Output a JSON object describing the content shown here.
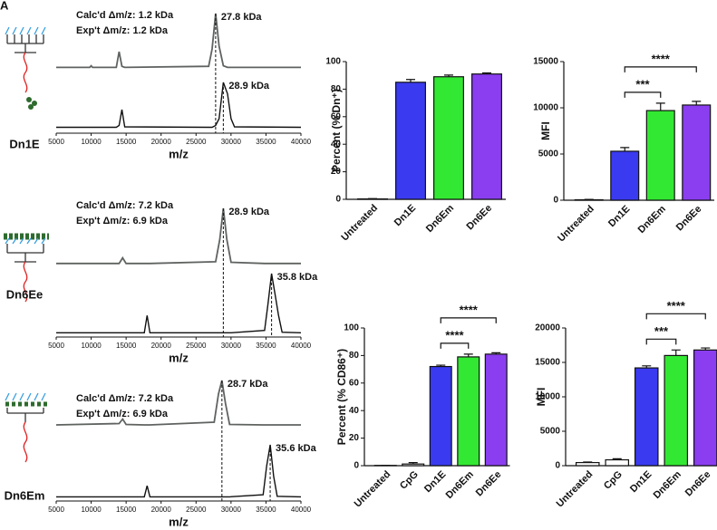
{
  "chart_data": [
    {
      "type": "line",
      "panel_label": "A",
      "sample": "Dn1E",
      "xlabel": "m/z",
      "annotations": [
        "Calc'd Δm/z: 1.2 kDa",
        "Exp't  Δm/z: 1.2 kDa"
      ],
      "xlim": [
        5000,
        40000
      ],
      "xticks": [
        5000,
        10000,
        15000,
        20000,
        25000,
        30000,
        35000,
        40000
      ],
      "x": [
        5000,
        9800,
        10000,
        10200,
        13600,
        14000,
        14400,
        14800,
        26800,
        27300,
        27800,
        28300,
        28900,
        29500,
        30000,
        30500,
        40000
      ],
      "series": [
        {
          "color": "#5f6360",
          "peak": {
            "x": 27800,
            "label": "27.8 kDa"
          },
          "values": [
            0.01,
            0.01,
            0.04,
            0.01,
            0.01,
            0.3,
            0.03,
            0.01,
            0.03,
            0.35,
            1,
            0.4,
            0.04,
            0.01,
            0.01,
            0.01,
            0.01
          ]
        },
        {
          "color": "#111111",
          "peak": {
            "x": 28900,
            "label": "28.9 kDa"
          },
          "values": [
            0.01,
            0.01,
            0.01,
            0.01,
            0.01,
            0.05,
            0.4,
            0.02,
            0.01,
            0.01,
            0.05,
            0.2,
            1,
            0.75,
            0.2,
            0.02,
            0.01
          ]
        }
      ]
    },
    {
      "type": "line",
      "sample": "Dn6Ee",
      "xlabel": "m/z",
      "annotations": [
        "Calc'd Δm/z: 7.2 kDa",
        "Exp't  Δm/z: 6.9 kDa"
      ],
      "xlim": [
        5000,
        40000
      ],
      "xticks": [
        5000,
        10000,
        15000,
        20000,
        25000,
        30000,
        35000,
        40000
      ],
      "x": [
        5000,
        14000,
        14500,
        15000,
        17600,
        18000,
        18400,
        27800,
        28400,
        28900,
        29400,
        30000,
        34800,
        35300,
        35800,
        36300,
        36800,
        37300,
        40000
      ],
      "series": [
        {
          "color": "#5f6360",
          "peak": {
            "x": 28900,
            "label": "28.9 kDa"
          },
          "values": [
            0.02,
            0.02,
            0.12,
            0.02,
            0.02,
            0.02,
            0.02,
            0.05,
            0.45,
            1,
            0.45,
            0.04,
            0.02,
            0.02,
            0.02,
            0.02,
            0.02,
            0.02,
            0.02
          ]
        },
        {
          "color": "#111111",
          "peak": {
            "x": 35800,
            "label": "35.8 kDa"
          },
          "values": [
            0.01,
            0.01,
            0.01,
            0.01,
            0.01,
            0.3,
            0.01,
            0.01,
            0.01,
            0.01,
            0.01,
            0.01,
            0.05,
            0.5,
            1,
            0.65,
            0.3,
            0.02,
            0.01
          ]
        }
      ]
    },
    {
      "type": "line",
      "sample": "Dn6Em",
      "xlabel": "m/z",
      "annotations": [
        "Calc'd Δm/z: 7.2 kDa",
        "Exp't  Δm/z: 6.9 kDa"
      ],
      "xlim": [
        5000,
        40000
      ],
      "xticks": [
        5000,
        10000,
        15000,
        20000,
        25000,
        30000,
        35000,
        40000
      ],
      "x": [
        5000,
        14000,
        14500,
        15000,
        17600,
        18000,
        18400,
        27600,
        28200,
        28700,
        29200,
        29800,
        34600,
        35100,
        35600,
        36100,
        36600,
        40000
      ],
      "series": [
        {
          "color": "#5f6360",
          "peak": {
            "x": 28700,
            "label": "28.7 kDa"
          },
          "values": [
            0.02,
            0.05,
            0.15,
            0.03,
            0.02,
            0.02,
            0.02,
            0.08,
            0.7,
            1,
            0.5,
            0.03,
            0.02,
            0.02,
            0.02,
            0.02,
            0.02,
            0.02
          ]
        },
        {
          "color": "#111111",
          "peak": {
            "x": 35600,
            "label": "35.6 kDa"
          },
          "values": [
            0.01,
            0.01,
            0.01,
            0.01,
            0.01,
            0.22,
            0.01,
            0.01,
            0.01,
            0.01,
            0.01,
            0.01,
            0.05,
            0.6,
            1,
            0.4,
            0.02,
            0.01
          ]
        }
      ]
    },
    {
      "type": "bar",
      "ylabel": "Percent (% Dn⁺)",
      "categories": [
        "Untreated",
        "Dn1E",
        "Dn6Em",
        "Dn6Ee"
      ],
      "values": [
        0.3,
        85,
        89,
        91
      ],
      "errors": [
        0.2,
        2,
        1.2,
        0.8
      ],
      "colors": [
        "#ffffff",
        "#3a3af0",
        "#33e833",
        "#8a3ef0"
      ],
      "ylim": [
        0,
        100
      ],
      "yticks": [
        0,
        20,
        40,
        60,
        80,
        100
      ],
      "significance": []
    },
    {
      "type": "bar",
      "ylabel": "MFI",
      "categories": [
        "Untreated",
        "Dn1E",
        "Dn6Em",
        "Dn6Ee"
      ],
      "values": [
        50,
        5300,
        9700,
        10300
      ],
      "errors": [
        40,
        400,
        800,
        400
      ],
      "colors": [
        "#ffffff",
        "#3a3af0",
        "#33e833",
        "#8a3ef0"
      ],
      "ylim": [
        0,
        15000
      ],
      "yticks": [
        0,
        5000,
        10000,
        15000
      ],
      "significance": [
        {
          "pair": [
            "Dn1E",
            "Dn6Em"
          ],
          "label": "***"
        },
        {
          "pair": [
            "Dn1E",
            "Dn6Ee"
          ],
          "label": "****"
        }
      ]
    },
    {
      "type": "bar",
      "ylabel": "Percent (% CD86⁺)",
      "categories": [
        "Untreated",
        "CpG",
        "Dn1E",
        "Dn6Em",
        "Dn6Ee"
      ],
      "values": [
        0.2,
        1.2,
        72,
        79,
        81
      ],
      "errors": [
        0.1,
        1,
        1,
        2,
        1
      ],
      "colors": [
        "#ffffff",
        "#ffffff",
        "#3a3af0",
        "#33e833",
        "#8a3ef0"
      ],
      "ylim": [
        0,
        100
      ],
      "yticks": [
        0,
        20,
        40,
        60,
        80,
        100
      ],
      "significance": [
        {
          "pair": [
            "Dn1E",
            "Dn6Em"
          ],
          "label": "****"
        },
        {
          "pair": [
            "Dn1E",
            "Dn6Ee"
          ],
          "label": "****"
        }
      ]
    },
    {
      "type": "bar",
      "ylabel": "MFI",
      "categories": [
        "Untreated",
        "CpG",
        "Dn1E",
        "Dn6Em",
        "Dn6Ee"
      ],
      "values": [
        450,
        850,
        14200,
        16000,
        16800
      ],
      "errors": [
        80,
        150,
        300,
        800,
        300
      ],
      "colors": [
        "#ffffff",
        "#ffffff",
        "#3a3af0",
        "#33e833",
        "#8a3ef0"
      ],
      "ylim": [
        0,
        20000
      ],
      "yticks": [
        0,
        5000,
        10000,
        15000,
        20000
      ],
      "significance": [
        {
          "pair": [
            "Dn1E",
            "Dn6Em"
          ],
          "label": "***"
        },
        {
          "pair": [
            "Dn1E",
            "Dn6Ee"
          ],
          "label": "****"
        }
      ]
    }
  ]
}
